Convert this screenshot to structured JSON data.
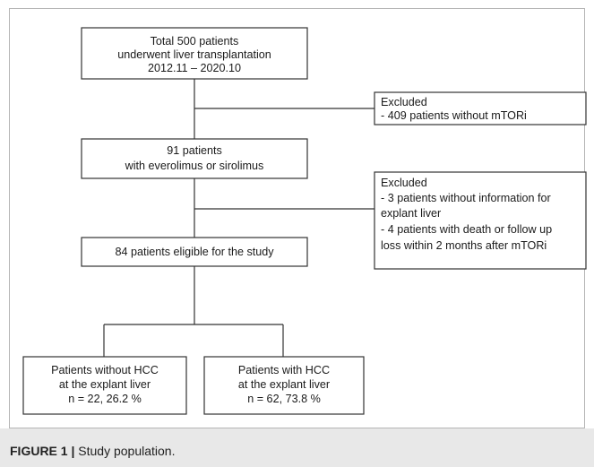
{
  "flowchart": {
    "total_box": [
      "Total 500 patients",
      "underwent liver transplantation",
      "2012.11 – 2020.10"
    ],
    "excluded_1": [
      "Excluded",
      "- 409 patients without mTORi"
    ],
    "mtor_box": [
      "91 patients",
      "with everolimus or sirolimus"
    ],
    "excluded_2": [
      "Excluded",
      "- 3 patients without information for",
      "explant liver",
      "- 4 patients with death or follow up",
      "loss within 2 months after mTORi"
    ],
    "eligible_box": [
      "84 patients eligible for the study"
    ],
    "no_hcc_box": [
      "Patients without HCC",
      "at the explant liver",
      "n = 22, 26.2 %"
    ],
    "hcc_box": [
      "Patients with HCC",
      "at the explant liver",
      "n = 62, 73.8 %"
    ]
  },
  "caption": {
    "label": "FIGURE 1 |",
    "text": " Study population."
  }
}
